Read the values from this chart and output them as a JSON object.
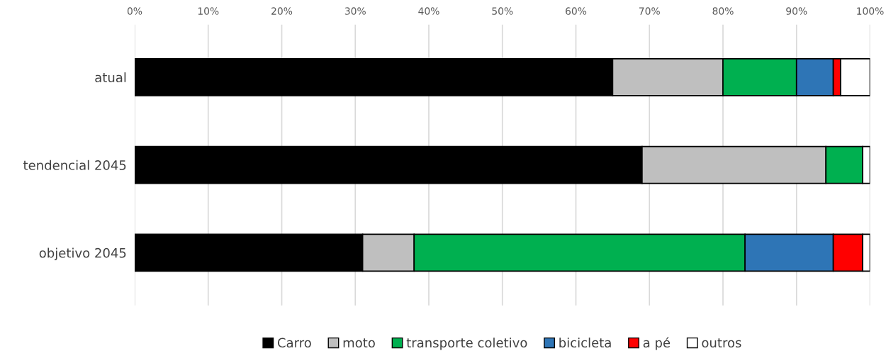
{
  "chart_data": {
    "type": "bar",
    "orientation": "horizontal",
    "stacked": true,
    "categories": [
      "atual",
      "tendencial 2045",
      "objetivo 2045"
    ],
    "series": [
      {
        "name": "Carro",
        "color": "#000000",
        "values": [
          65,
          69,
          31
        ]
      },
      {
        "name": "moto",
        "color": "#bfbfbf",
        "values": [
          15,
          25,
          7
        ]
      },
      {
        "name": "transporte coletivo",
        "color": "#00b050",
        "values": [
          10,
          5,
          45
        ]
      },
      {
        "name": "bicicleta",
        "color": "#2e75b6",
        "values": [
          5,
          null,
          12
        ]
      },
      {
        "name": "a pé",
        "color": "#ff0000",
        "values": [
          1,
          null,
          4
        ]
      },
      {
        "name": "outros",
        "color": "#ffffff",
        "values": [
          4,
          1,
          1
        ]
      }
    ],
    "xlim": [
      0,
      100
    ],
    "xticks": [
      {
        "value": 0,
        "label": "0%"
      },
      {
        "value": 10,
        "label": "10%"
      },
      {
        "value": 20,
        "label": "20%"
      },
      {
        "value": 30,
        "label": "30%"
      },
      {
        "value": 40,
        "label": "40%"
      },
      {
        "value": 50,
        "label": "50%"
      },
      {
        "value": 60,
        "label": "60%"
      },
      {
        "value": 70,
        "label": "70%"
      },
      {
        "value": 80,
        "label": "80%"
      },
      {
        "value": 90,
        "label": "90%"
      },
      {
        "value": 100,
        "label": "100%"
      }
    ],
    "grid": "x",
    "legend": "bottom"
  }
}
